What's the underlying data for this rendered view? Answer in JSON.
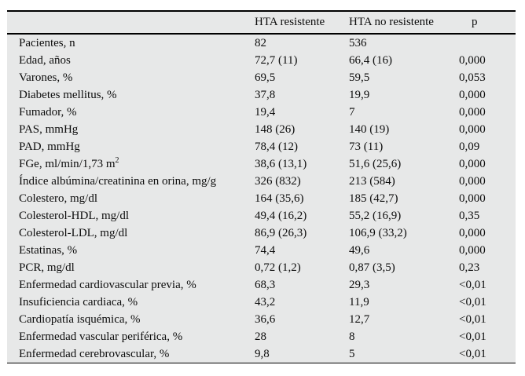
{
  "table": {
    "columns": [
      "",
      "HTA resistente",
      "HTA no resistente",
      "p"
    ],
    "rows": [
      {
        "label": "Pacientes, n",
        "resistente": "82",
        "no_resistente": "536",
        "p": ""
      },
      {
        "label": "Edad, años",
        "resistente": "72,7 (11)",
        "no_resistente": "66,4 (16)",
        "p": "0,000"
      },
      {
        "label": "Varones, %",
        "resistente": "69,5",
        "no_resistente": "59,5",
        "p": "0,053"
      },
      {
        "label": "Diabetes mellitus, %",
        "resistente": "37,8",
        "no_resistente": "19,9",
        "p": "0,000"
      },
      {
        "label": "Fumador, %",
        "resistente": "19,4",
        "no_resistente": "7",
        "p": "0,000"
      },
      {
        "label": "PAS, mmHg",
        "resistente": "148 (26)",
        "no_resistente": "140 (19)",
        "p": "0,000"
      },
      {
        "label": "PAD, mmHg",
        "resistente": "78,4 (12)",
        "no_resistente": "73 (11)",
        "p": "0,09"
      },
      {
        "label": "FGe, ml/min/1,73 m",
        "label_sup": "2",
        "resistente": "38,6 (13,1)",
        "no_resistente": "51,6 (25,6)",
        "p": "0,000"
      },
      {
        "label": "Índice albúmina/creatinina en orina, mg/g",
        "resistente": "326 (832)",
        "no_resistente": "213 (584)",
        "p": "0,000"
      },
      {
        "label": "Colestero, mg/dl",
        "resistente": "164 (35,6)",
        "no_resistente": "185 (42,7)",
        "p": "0,000"
      },
      {
        "label": "Colesterol-HDL, mg/dl",
        "resistente": "49,4 (16,2)",
        "no_resistente": "55,2 (16,9)",
        "p": "0,35"
      },
      {
        "label": "Colesterol-LDL, mg/dl",
        "resistente": "86,9 (26,3)",
        "no_resistente": "106,9 (33,2)",
        "p": "0,000"
      },
      {
        "label": "Estatinas, %",
        "resistente": "74,4",
        "no_resistente": "49,6",
        "p": "0,000"
      },
      {
        "label": "PCR, mg/dl",
        "resistente": "0,72 (1,2)",
        "no_resistente": "0,87 (3,5)",
        "p": "0,23"
      },
      {
        "label": "Enfermedad cardiovascular previa, %",
        "resistente": "68,3",
        "no_resistente": "29,3",
        "p": "<0,01"
      },
      {
        "label": "Insuficiencia cardiaca, %",
        "resistente": "43,2",
        "no_resistente": "11,9",
        "p": "<0,01"
      },
      {
        "label": "Cardiopatía isquémica, %",
        "resistente": "36,6",
        "no_resistente": "12,7",
        "p": "<0,01"
      },
      {
        "label": "Enfermedad vascular periférica, %",
        "resistente": "28",
        "no_resistente": "8",
        "p": "<0,01"
      },
      {
        "label": "Enfermedad cerebrovascular, %",
        "resistente": "9,8",
        "no_resistente": "5",
        "p": "<0,01"
      }
    ],
    "colors": {
      "table_background": "#e7e8e8",
      "border": "#000000",
      "page_background": "#ffffff",
      "text": "#0d0d0d"
    }
  }
}
